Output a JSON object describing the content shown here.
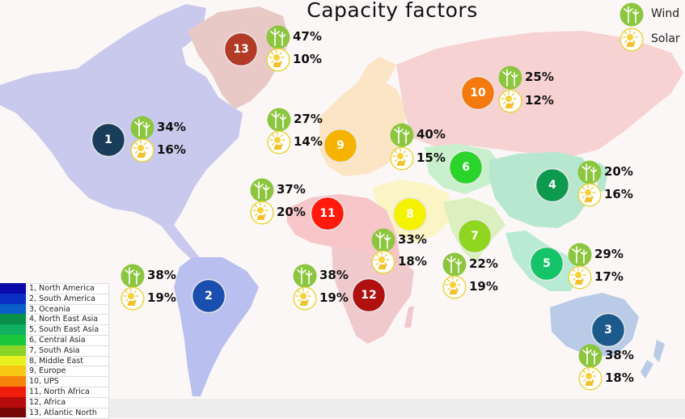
{
  "title": "Capacity factors",
  "key": {
    "wind_label": "Wind",
    "solar_label": "Solar",
    "wind_icon": "wind-turbine-icon",
    "solar_icon": "sun-icon"
  },
  "regions": [
    {
      "num": "1",
      "wind": "34%",
      "solar": "16%",
      "color": "#1b3d5c"
    },
    {
      "num": "2",
      "wind": "38%",
      "solar": "19%",
      "color": "#1a4fb0"
    },
    {
      "num": "3",
      "wind": "38%",
      "solar": "18%",
      "color": "#1d5a8c"
    },
    {
      "num": "4",
      "wind": "20%",
      "solar": "16%",
      "color": "#0d9a4f"
    },
    {
      "num": "5",
      "wind": "29%",
      "solar": "17%",
      "color": "#15c468"
    },
    {
      "num": "6",
      "wind": "40%",
      "solar": "15%",
      "color": "#2ad42a"
    },
    {
      "num": "7",
      "wind": "22%",
      "solar": "19%",
      "color": "#8fd620"
    },
    {
      "num": "8",
      "wind": "33%",
      "solar": "18%",
      "color": "#f5f200"
    },
    {
      "num": "9",
      "wind": "27%",
      "solar": "14%",
      "color": "#f6b400"
    },
    {
      "num": "10",
      "wind": "25%",
      "solar": "12%",
      "color": "#f47a10"
    },
    {
      "num": "11",
      "wind": "37%",
      "solar": "20%",
      "color": "#ff1a0d"
    },
    {
      "num": "12",
      "wind": "38%",
      "solar": "19%",
      "color": "#b01010"
    },
    {
      "num": "13",
      "wind": "47%",
      "solar": "10%",
      "color": "#b43a28"
    }
  ],
  "legend": [
    {
      "label": "1, North America",
      "color": "#0a0aa8"
    },
    {
      "label": "2, South America",
      "color": "#0b2ec4"
    },
    {
      "label": "3, Oceania",
      "color": "#0a5ec8"
    },
    {
      "label": "4, North East Asia",
      "color": "#08904a"
    },
    {
      "label": "5, South East Asia",
      "color": "#10b060"
    },
    {
      "label": "6, Central Asia",
      "color": "#18c83a"
    },
    {
      "label": "7, South Asia",
      "color": "#8ad428"
    },
    {
      "label": "8, Middle East",
      "color": "#e8f020"
    },
    {
      "label": "9, Europe",
      "color": "#f6c814"
    },
    {
      "label": "10, UPS",
      "color": "#f5820a"
    },
    {
      "label": "11, North Africa",
      "color": "#f01c0c"
    },
    {
      "label": "12, Africa",
      "color": "#b80c0c"
    },
    {
      "label": "13, Atlantic North",
      "color": "#780808"
    }
  ]
}
